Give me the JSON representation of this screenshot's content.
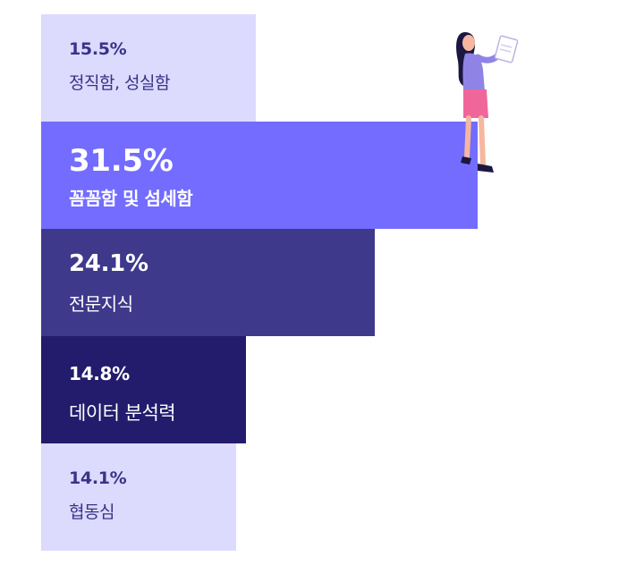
{
  "chart_data": {
    "type": "bar",
    "orientation": "horizontal",
    "categories": [
      "정직함, 성실함",
      "꼼꼼함 및 섬세함",
      "전문지식",
      "데이터 분석력",
      "협동심"
    ],
    "values": [
      15.5,
      31.5,
      24.1,
      14.8,
      14.1
    ],
    "value_labels": [
      "15.5%",
      "31.5%",
      "24.1%",
      "14.8%",
      "14.1%"
    ],
    "bar_colors": [
      "#dcdafd",
      "#736cff",
      "#3f398c",
      "#231c6c",
      "#dcdafd"
    ],
    "text_colors": [
      "#3a3388",
      "#ffffff",
      "#ffffff",
      "#ffffff",
      "#3a3388"
    ],
    "styles": [
      "small",
      "big",
      "mid",
      "dark",
      "small"
    ],
    "title": "",
    "xlabel": "",
    "ylabel": "",
    "grid": false,
    "legend": "none"
  },
  "illustration": {
    "icon": "woman-reading-document-icon"
  }
}
